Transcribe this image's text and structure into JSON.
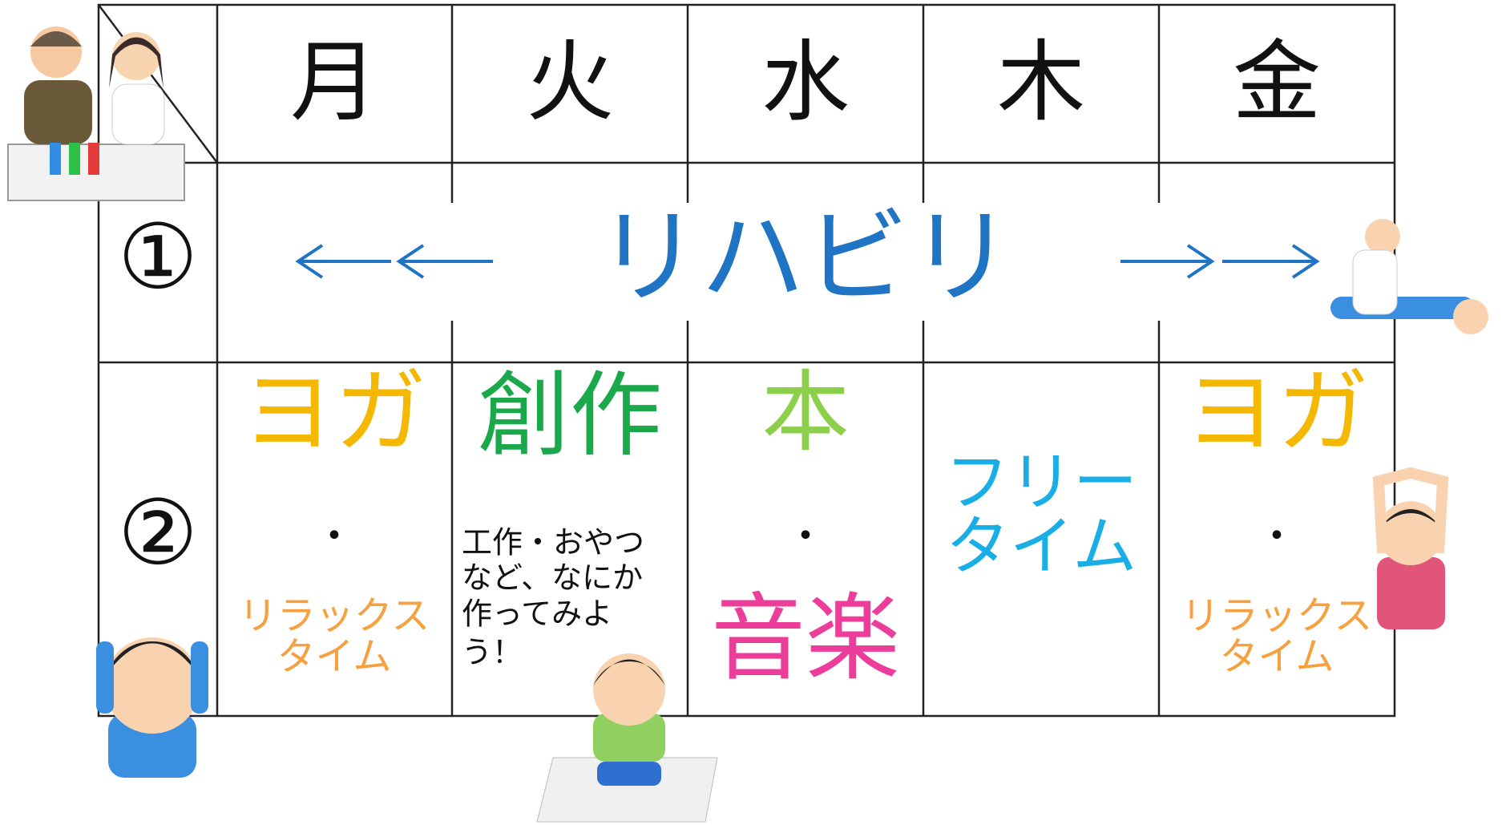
{
  "header": {
    "days": [
      "月",
      "火",
      "水",
      "木",
      "金"
    ]
  },
  "rows": [
    {
      "label": "①",
      "activity": "リハビリ"
    },
    {
      "label": "②",
      "monday": {
        "title": "ヨガ",
        "dot": "・",
        "sub": [
          "リラックス",
          "タイム"
        ]
      },
      "tuesday": {
        "title": "創作",
        "note": [
          "工作・おやつ",
          "など、なにか",
          "作ってみよ",
          "う！"
        ]
      },
      "wednesday": {
        "title": "本",
        "dot": "・",
        "sub": "音楽"
      },
      "thursday": {
        "title": [
          "フリー",
          "タイム"
        ]
      },
      "friday": {
        "title": "ヨガ",
        "dot": "・",
        "sub": [
          "リラックス",
          "タイム"
        ]
      }
    }
  ]
}
